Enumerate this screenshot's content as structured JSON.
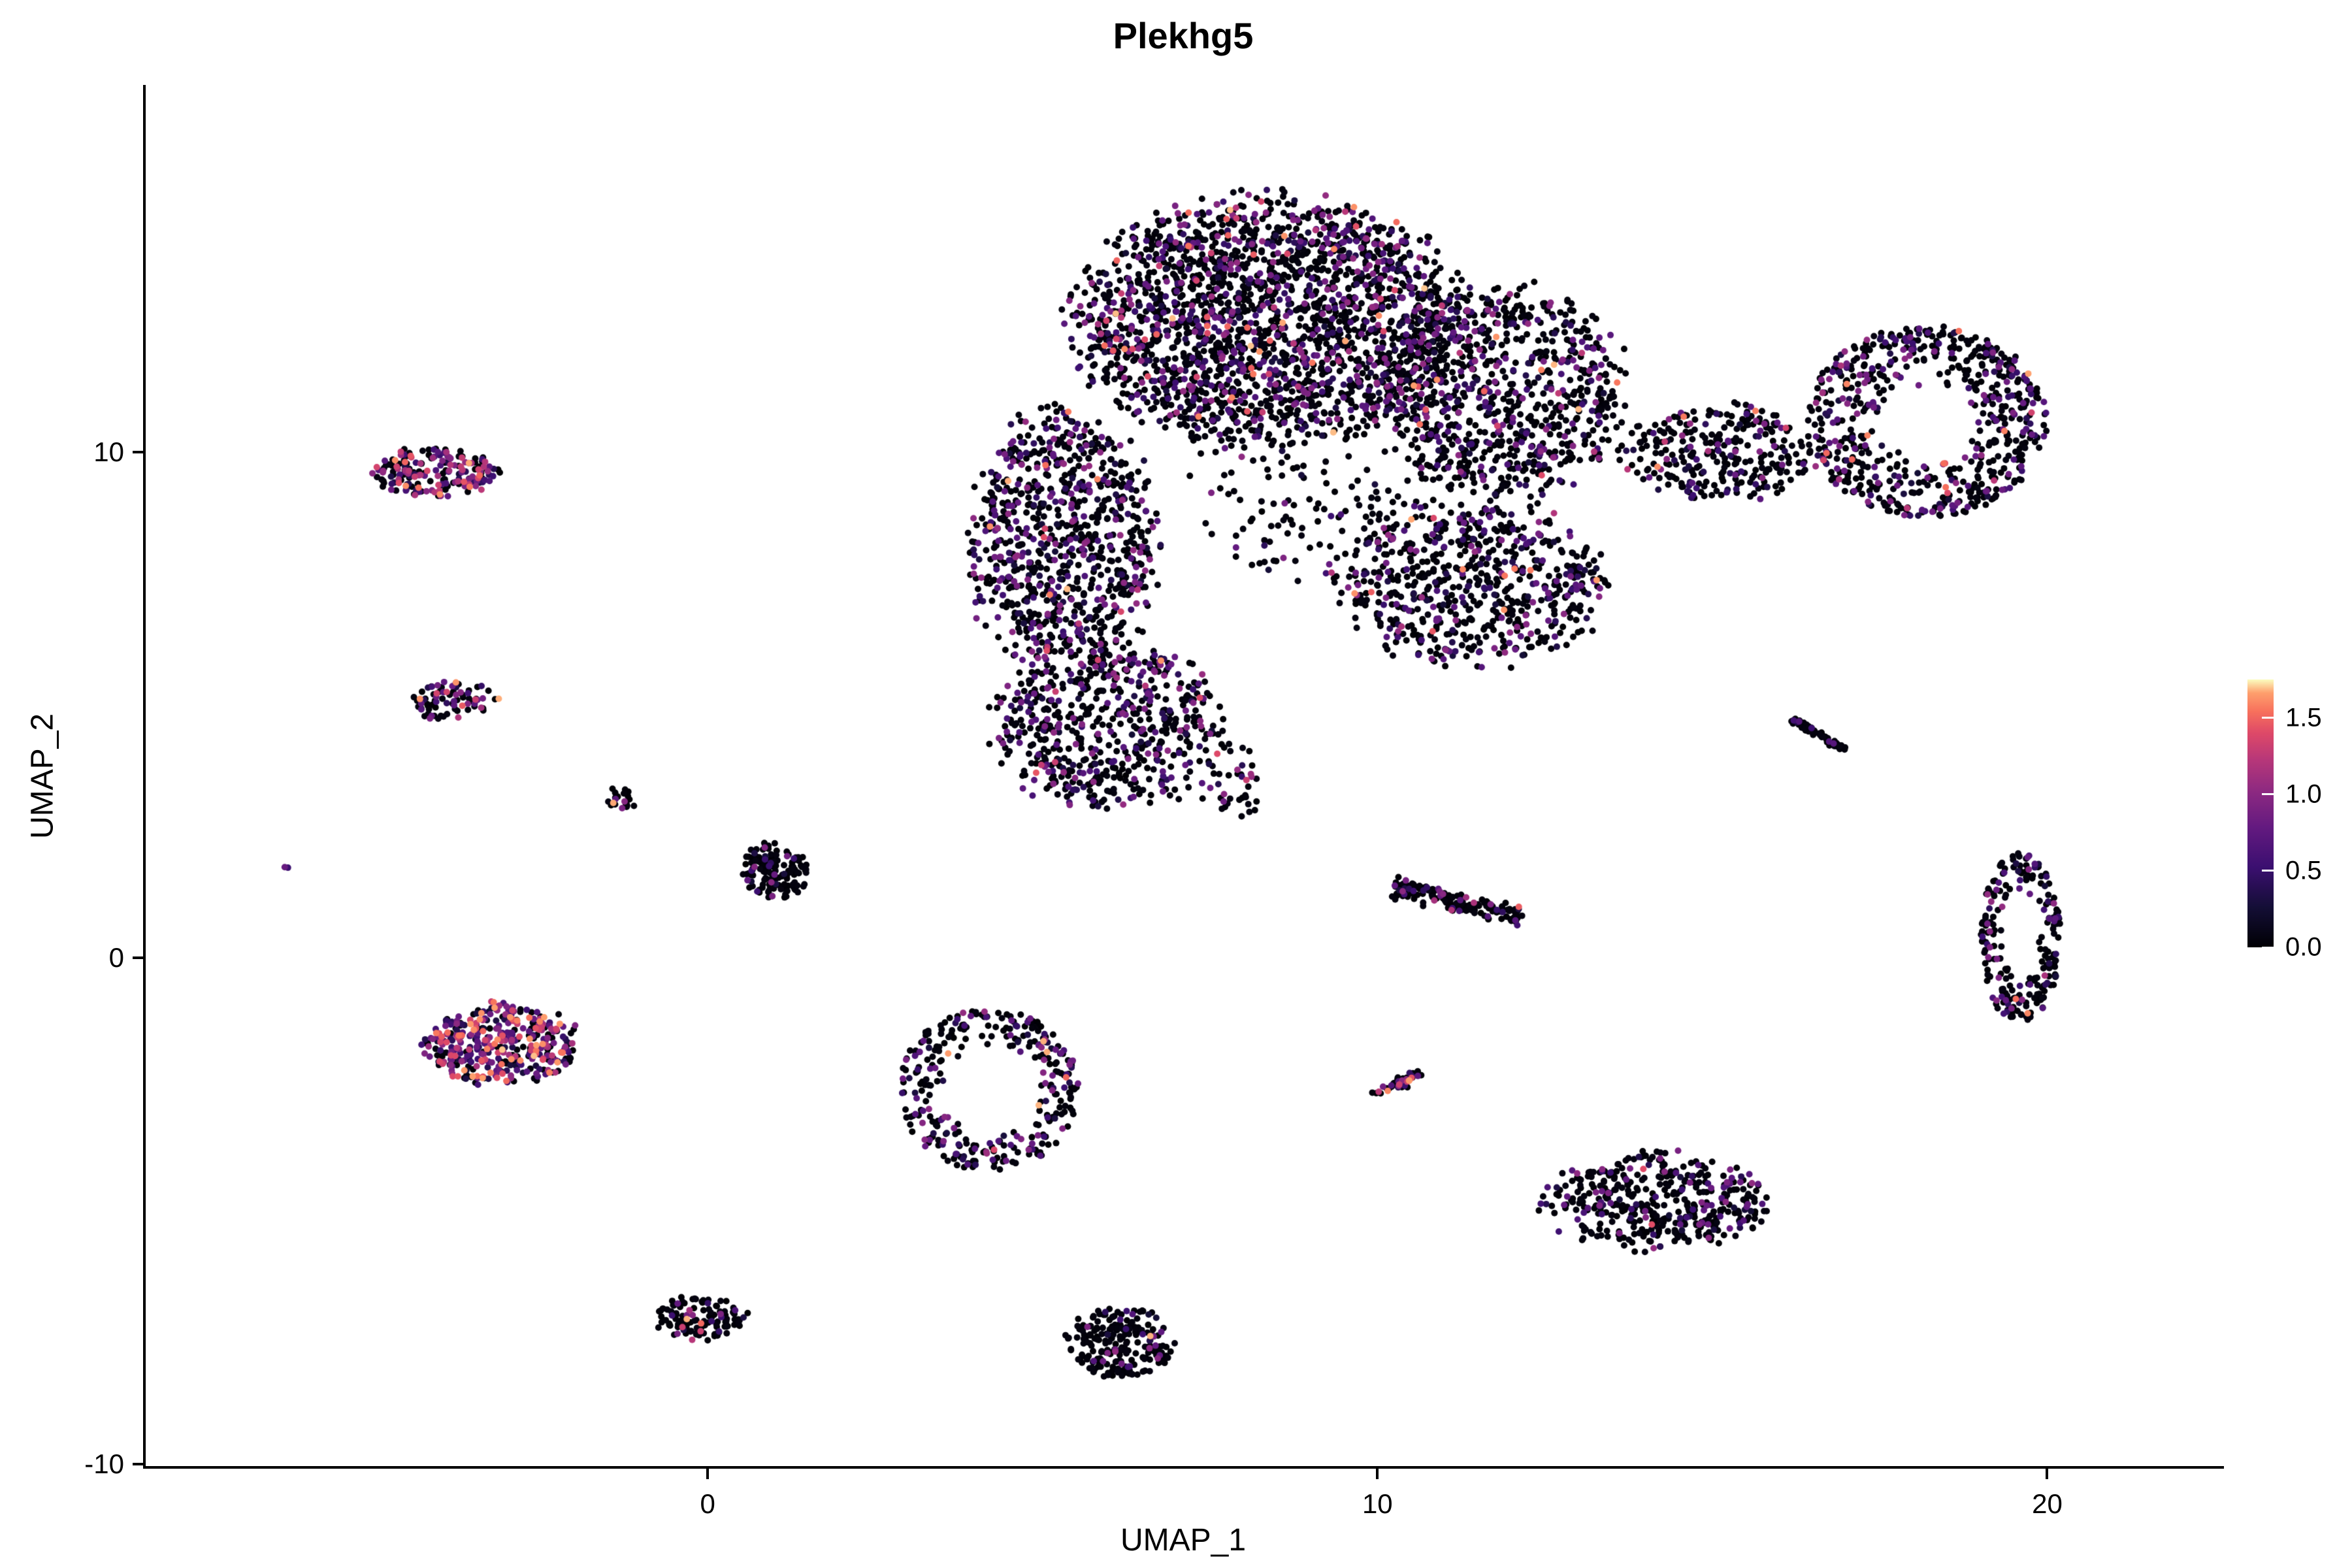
{
  "page": {
    "background": "#ffffff"
  },
  "chart_data": {
    "type": "scatter",
    "title": "Plekhg5",
    "xlabel": "UMAP_1",
    "ylabel": "UMAP_2",
    "xlim": [
      -8.4,
      22.6
    ],
    "ylim": [
      -10.05,
      17.25
    ],
    "x_ticks": [
      "0",
      "10",
      "20"
    ],
    "x_tick_values": [
      0,
      10,
      20
    ],
    "y_ticks": [
      "-10",
      "0",
      "10"
    ],
    "y_tick_values": [
      -10,
      0,
      10
    ],
    "grid": false,
    "legend_position": "right",
    "point_radius": 5,
    "seed": 42,
    "colorbar": {
      "vmin": 0.0,
      "vmax": 1.75,
      "tick_values": [
        1.5,
        1.0,
        0.5,
        0.0
      ],
      "tick_labels": [
        "1.5",
        "1.0",
        "0.5",
        "0.0"
      ],
      "stops": [
        [
          0.0,
          "#000004"
        ],
        [
          0.15,
          "#140e36"
        ],
        [
          0.3,
          "#3b0f70"
        ],
        [
          0.45,
          "#641a80"
        ],
        [
          0.58,
          "#8c2981"
        ],
        [
          0.7,
          "#b73779"
        ],
        [
          0.8,
          "#de4968"
        ],
        [
          0.88,
          "#f7705c"
        ],
        [
          0.95,
          "#fe9f6d"
        ],
        [
          1.0,
          "#fcfdbf"
        ]
      ]
    },
    "clusters": [
      {
        "name": "main-upper-arc",
        "cx": 8.4,
        "cy": 12.6,
        "rx": 3.1,
        "ry": 2.5,
        "n": 2200,
        "shape": "blob",
        "frac_mid": 0.26,
        "frac_hot": 0.035
      },
      {
        "name": "main-upper-right",
        "cx": 11.9,
        "cy": 11.2,
        "rx": 1.9,
        "ry": 2.2,
        "n": 800,
        "shape": "blob",
        "frac_mid": 0.26,
        "frac_hot": 0.03
      },
      {
        "name": "main-left-lobe",
        "cx": 5.3,
        "cy": 8.2,
        "rx": 1.5,
        "ry": 2.7,
        "n": 850,
        "shape": "blob",
        "frac_mid": 0.3,
        "frac_hot": 0.03
      },
      {
        "name": "main-lower-lobe",
        "cx": 6.0,
        "cy": 4.6,
        "rx": 1.8,
        "ry": 1.7,
        "n": 600,
        "shape": "blob",
        "frac_mid": 0.3,
        "frac_hot": 0.02
      },
      {
        "name": "main-right-mid",
        "cx": 11.4,
        "cy": 7.4,
        "rx": 2.1,
        "ry": 1.7,
        "n": 650,
        "shape": "blob",
        "frac_mid": 0.24,
        "frac_hot": 0.02
      },
      {
        "name": "main-arm",
        "cx": 15.1,
        "cy": 10.0,
        "rx": 1.6,
        "ry": 1.0,
        "n": 300,
        "shape": "blob",
        "frac_mid": 0.22,
        "frac_hot": 0.02
      },
      {
        "name": "right-loop",
        "cx": 18.2,
        "cy": 10.6,
        "rx": 1.8,
        "ry": 1.9,
        "n": 650,
        "shape": "ring",
        "inner": 0.35,
        "frac_mid": 0.25,
        "frac_hot": 0.03
      },
      {
        "name": "center-sparse",
        "cx": 9.3,
        "cy": 9.2,
        "rx": 2.3,
        "ry": 1.9,
        "n": 170,
        "shape": "blob",
        "frac_mid": 0.15,
        "frac_hot": 0.01
      },
      {
        "name": "blob-trail",
        "cx": 7.8,
        "cy": 3.4,
        "rx": 0.5,
        "ry": 0.9,
        "n": 40,
        "shape": "blob",
        "frac_mid": 0.25,
        "frac_hot": 0.02
      },
      {
        "name": "left-top-cluster",
        "cx": -4.1,
        "cy": 9.6,
        "rx": 1.0,
        "ry": 0.5,
        "n": 190,
        "shape": "blob",
        "frac_mid": 0.4,
        "frac_hot": 0.22
      },
      {
        "name": "left-mid-cluster",
        "cx": -3.8,
        "cy": 5.1,
        "rx": 0.7,
        "ry": 0.45,
        "n": 80,
        "shape": "blob",
        "frac_mid": 0.35,
        "frac_hot": 0.08
      },
      {
        "name": "tiny-cluster",
        "cx": -1.3,
        "cy": 3.1,
        "rx": 0.22,
        "ry": 0.3,
        "n": 22,
        "shape": "blob",
        "frac_mid": 0.2,
        "frac_hot": 0.12
      },
      {
        "name": "lone-point",
        "cx": -6.3,
        "cy": 1.8,
        "rx": 0.06,
        "ry": 0.06,
        "n": 2,
        "shape": "blob",
        "frac_mid": 0.5,
        "frac_hot": 0
      },
      {
        "name": "small-black-cluster",
        "cx": 1.0,
        "cy": 1.7,
        "rx": 0.55,
        "ry": 0.6,
        "n": 140,
        "shape": "blob",
        "frac_mid": 0.1,
        "frac_hot": 0.01
      },
      {
        "name": "hot-cluster",
        "cx": -3.1,
        "cy": -1.7,
        "rx": 1.2,
        "ry": 0.85,
        "n": 400,
        "shape": "blob",
        "frac_mid": 0.45,
        "frac_hot": 0.28
      },
      {
        "name": "ring-cluster",
        "cx": 4.2,
        "cy": -2.6,
        "rx": 1.35,
        "ry": 1.6,
        "n": 330,
        "shape": "ring",
        "inner": 0.5,
        "frac_mid": 0.28,
        "frac_hot": 0.04
      },
      {
        "name": "diag-cluster-right",
        "cx": 11.2,
        "cy": 1.1,
        "rx": 1.0,
        "ry": 0.28,
        "n": 160,
        "shape": "line",
        "angle": -18,
        "frac_mid": 0.15,
        "frac_hot": 0.01
      },
      {
        "name": "small-diag-cluster",
        "cx": 10.3,
        "cy": -2.5,
        "rx": 0.45,
        "ry": 0.15,
        "n": 55,
        "shape": "line",
        "angle": 35,
        "frac_mid": 0.3,
        "frac_hot": 0.12
      },
      {
        "name": "tiny-diag-line",
        "cx": 16.6,
        "cy": 4.4,
        "rx": 0.5,
        "ry": 0.09,
        "n": 60,
        "shape": "line",
        "angle": -38,
        "frac_mid": 0.08,
        "frac_hot": 0
      },
      {
        "name": "right-vertical-loop",
        "cx": 19.6,
        "cy": 0.4,
        "rx": 0.6,
        "ry": 1.7,
        "n": 230,
        "shape": "ring",
        "inner": 0.45,
        "frac_mid": 0.22,
        "frac_hot": 0.02
      },
      {
        "name": "bottom-right-cluster",
        "cx": 14.2,
        "cy": -4.8,
        "rx": 1.8,
        "ry": 1.0,
        "n": 430,
        "shape": "blob",
        "frac_mid": 0.22,
        "frac_hot": 0.01
      },
      {
        "name": "bottom-center-cluster",
        "cx": 6.2,
        "cy": -7.6,
        "rx": 0.85,
        "ry": 0.75,
        "n": 230,
        "shape": "blob",
        "frac_mid": 0.1,
        "frac_hot": 0.005
      },
      {
        "name": "bottom-left-cluster",
        "cx": -0.1,
        "cy": -7.1,
        "rx": 0.75,
        "ry": 0.45,
        "n": 120,
        "shape": "blob",
        "frac_mid": 0.12,
        "frac_hot": 0.02
      }
    ]
  }
}
